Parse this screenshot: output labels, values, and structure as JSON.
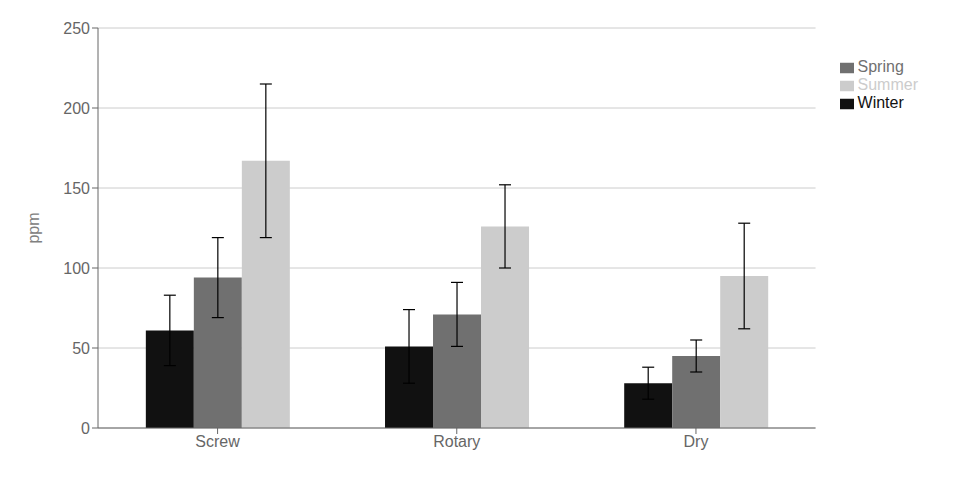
{
  "chart_data": {
    "type": "bar",
    "categories": [
      "Screw",
      "Rotary",
      "Dry"
    ],
    "series": [
      {
        "name": "Winter",
        "values": [
          61,
          51,
          28
        ],
        "errors": [
          22,
          23,
          10
        ],
        "color": "#111111"
      },
      {
        "name": "Spring",
        "values": [
          94,
          71,
          45
        ],
        "errors": [
          25,
          20,
          10
        ],
        "color": "#707070"
      },
      {
        "name": "Summer",
        "values": [
          167,
          126,
          95
        ],
        "errors": [
          48,
          26,
          33
        ],
        "color": "#cccccc"
      }
    ],
    "ylabel": "ppm",
    "ylim": [
      0,
      250
    ],
    "yticks": [
      0,
      50,
      100,
      150,
      200,
      250
    ],
    "grid": true,
    "legend": "right"
  }
}
